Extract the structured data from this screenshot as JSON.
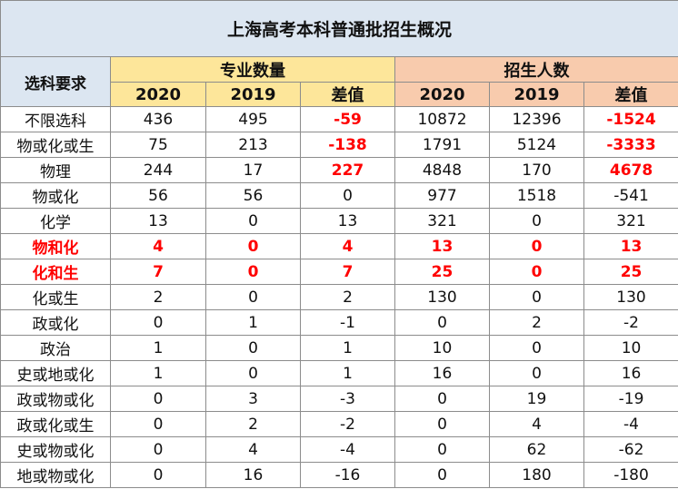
{
  "title": "上海高考本科普通批招生概况",
  "header": {
    "row_label": "选科要求",
    "group1": "专业数量",
    "group2": "招生人数",
    "sub": [
      "2020",
      "2019",
      "差值",
      "2020",
      "2019",
      "差值"
    ]
  },
  "rows": [
    {
      "name": "不限选科",
      "cells": [
        "436",
        "495",
        "-59",
        "10872",
        "12396",
        "-1524"
      ]
    },
    {
      "name": "物或化或生",
      "cells": [
        "75",
        "213",
        "-138",
        "1791",
        "5124",
        "-3333"
      ]
    },
    {
      "name": "物理",
      "cells": [
        "244",
        "17",
        "227",
        "4848",
        "170",
        "4678"
      ]
    },
    {
      "name": "物或化",
      "cells": [
        "56",
        "56",
        "0",
        "977",
        "1518",
        "-541"
      ]
    },
    {
      "name": "化学",
      "cells": [
        "13",
        "0",
        "13",
        "321",
        "0",
        "321"
      ]
    },
    {
      "name": "物和化",
      "cells": [
        "4",
        "0",
        "4",
        "13",
        "0",
        "13"
      ]
    },
    {
      "name": "化和生",
      "cells": [
        "7",
        "0",
        "7",
        "25",
        "0",
        "25"
      ]
    },
    {
      "name": "化或生",
      "cells": [
        "2",
        "0",
        "2",
        "130",
        "0",
        "130"
      ]
    },
    {
      "name": "政或化",
      "cells": [
        "0",
        "1",
        "-1",
        "0",
        "2",
        "-2"
      ]
    },
    {
      "name": "政治",
      "cells": [
        "1",
        "0",
        "1",
        "10",
        "0",
        "10"
      ]
    },
    {
      "name": "史或地或化",
      "cells": [
        "1",
        "0",
        "1",
        "16",
        "0",
        "16"
      ]
    },
    {
      "name": "政或物或化",
      "cells": [
        "0",
        "3",
        "-3",
        "0",
        "19",
        "-19"
      ]
    },
    {
      "name": "政或化或生",
      "cells": [
        "0",
        "2",
        "-2",
        "0",
        "4",
        "-4"
      ]
    },
    {
      "name": "史或物或化",
      "cells": [
        "0",
        "4",
        "-4",
        "0",
        "62",
        "-62"
      ]
    },
    {
      "name": "地或物或化",
      "cells": [
        "0",
        "16",
        "-16",
        "0",
        "180",
        "-180"
      ]
    }
  ],
  "colors": {
    "title_bg": "#dce6f1",
    "group1_bg": "#fde69a",
    "group2_bg": "#f8cbad",
    "highlight": "#ff0000"
  }
}
